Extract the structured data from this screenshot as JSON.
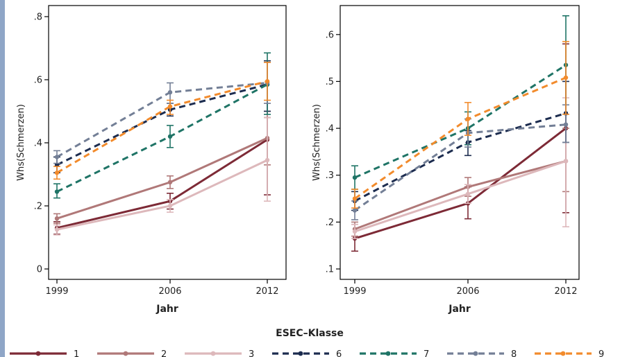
{
  "legend_title": "ESEC–Klasse",
  "chart_data": [
    {
      "type": "line",
      "xlabel": "Jahr",
      "ylabel": "Whs(Schmerzen)",
      "x": [
        1999,
        2006,
        2012
      ],
      "x_tick_labels": [
        "1999",
        "2006",
        "2012"
      ],
      "ylim": [
        0,
        0.8
      ],
      "y_ticks": [
        0,
        0.2,
        0.4,
        0.6,
        0.8
      ],
      "y_tick_labels": [
        "0",
        ".2",
        ".4",
        ".6",
        ".8"
      ],
      "grid": false,
      "series": [
        {
          "name": "1",
          "values": [
            0.13,
            0.215,
            0.41
          ],
          "ci_low": [
            0.11,
            0.19,
            0.235
          ],
          "ci_high": [
            0.15,
            0.24,
            0.48
          ]
        },
        {
          "name": "2",
          "values": [
            0.16,
            0.275,
            0.415
          ],
          "ci_low": [
            0.145,
            0.255,
            0.33
          ],
          "ci_high": [
            0.175,
            0.295,
            0.5
          ]
        },
        {
          "name": "3",
          "values": [
            0.125,
            0.2,
            0.345
          ],
          "ci_low": [
            0.108,
            0.18,
            0.215
          ],
          "ci_high": [
            0.14,
            0.22,
            0.48
          ]
        },
        {
          "name": "6",
          "values": [
            0.33,
            0.505,
            0.585
          ],
          "ci_low": [
            0.305,
            0.485,
            0.5
          ],
          "ci_high": [
            0.355,
            0.525,
            0.66
          ]
        },
        {
          "name": "7",
          "values": [
            0.245,
            0.42,
            0.585
          ],
          "ci_low": [
            0.225,
            0.385,
            0.49
          ],
          "ci_high": [
            0.27,
            0.455,
            0.685
          ]
        },
        {
          "name": "8",
          "values": [
            0.355,
            0.56,
            0.59
          ],
          "ci_low": [
            0.335,
            0.525,
            0.525
          ],
          "ci_high": [
            0.375,
            0.59,
            0.655
          ]
        },
        {
          "name": "9",
          "values": [
            0.305,
            0.515,
            0.595
          ],
          "ci_low": [
            0.285,
            0.49,
            0.535
          ],
          "ci_high": [
            0.325,
            0.535,
            0.655
          ]
        }
      ]
    },
    {
      "type": "line",
      "xlabel": "Jahr",
      "ylabel": "Whs(Schmerzen)",
      "x": [
        1999,
        2006,
        2012
      ],
      "x_tick_labels": [
        "1999",
        "2006",
        "2012"
      ],
      "ylim": [
        0.1,
        0.65
      ],
      "y_ticks": [
        0.1,
        0.2,
        0.3,
        0.4,
        0.5,
        0.6
      ],
      "y_tick_labels": [
        ".1",
        ".2",
        ".3",
        ".4",
        ".5",
        ".6"
      ],
      "grid": false,
      "series": [
        {
          "name": "1",
          "values": [
            0.165,
            0.24,
            0.4
          ],
          "ci_low": [
            0.138,
            0.207,
            0.22
          ],
          "ci_high": [
            0.195,
            0.275,
            0.58
          ]
        },
        {
          "name": "2",
          "values": [
            0.185,
            0.275,
            0.33
          ],
          "ci_low": [
            0.17,
            0.255,
            0.265
          ],
          "ci_high": [
            0.2,
            0.295,
            0.4
          ]
        },
        {
          "name": "3",
          "values": [
            0.18,
            0.26,
            0.33
          ],
          "ci_low": [
            0.165,
            0.24,
            0.19
          ],
          "ci_high": [
            0.195,
            0.28,
            0.465
          ]
        },
        {
          "name": "6",
          "values": [
            0.245,
            0.37,
            0.432
          ],
          "ci_low": [
            0.225,
            0.342,
            0.37
          ],
          "ci_high": [
            0.265,
            0.395,
            0.5
          ]
        },
        {
          "name": "7",
          "values": [
            0.295,
            0.4,
            0.535
          ],
          "ci_low": [
            0.27,
            0.365,
            0.43
          ],
          "ci_high": [
            0.32,
            0.435,
            0.64
          ]
        },
        {
          "name": "8",
          "values": [
            0.225,
            0.39,
            0.408
          ],
          "ci_low": [
            0.205,
            0.36,
            0.37
          ],
          "ci_high": [
            0.245,
            0.42,
            0.45
          ]
        },
        {
          "name": "9",
          "values": [
            0.25,
            0.42,
            0.508
          ],
          "ci_low": [
            0.23,
            0.385,
            0.43
          ],
          "ci_high": [
            0.27,
            0.455,
            0.585
          ]
        }
      ]
    }
  ],
  "series_style": {
    "1": {
      "color": "#7d2a36",
      "dash": "solid"
    },
    "2": {
      "color": "#b07878",
      "dash": "solid"
    },
    "3": {
      "color": "#ddb8bb",
      "dash": "solid"
    },
    "6": {
      "color": "#1c2c4f",
      "dash": "dashed"
    },
    "7": {
      "color": "#1f7466",
      "dash": "dashed"
    },
    "8": {
      "color": "#737f96",
      "dash": "dashed"
    },
    "9": {
      "color": "#f28b2c",
      "dash": "dashed"
    }
  }
}
